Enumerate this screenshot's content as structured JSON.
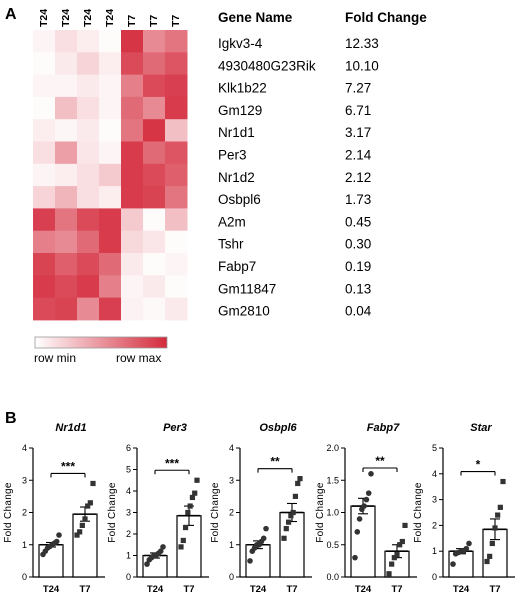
{
  "panel_a": {
    "letter": "A",
    "column_labels": [
      "T24",
      "T24",
      "T24",
      "T24",
      "T7",
      "T7",
      "T7"
    ],
    "table_header": {
      "gene": "Gene Name",
      "fold": "Fold Change"
    },
    "genes": [
      "Igkv3-4",
      "4930480G23Rik",
      "Klk1b22",
      "Gm129",
      "Nr1d1",
      "Per3",
      "Nr1d2",
      "Osbpl6",
      "A2m",
      "Tshr",
      "Fabp7",
      "Gm11847",
      "Gm2810"
    ],
    "fold_changes": [
      "12.33",
      "10.10",
      "7.27",
      "6.71",
      "3.17",
      "2.14",
      "2.12",
      "1.73",
      "0.45",
      "0.30",
      "0.19",
      "0.13",
      "0.04"
    ],
    "scale": {
      "min_label": "row min",
      "max_label": "row max",
      "min_color": "#ffffff",
      "max_color": "#d42a3c"
    },
    "heatmap": [
      [
        0.05,
        0.15,
        0.08,
        0.02,
        0.95,
        0.55,
        0.65
      ],
      [
        0.02,
        0.1,
        0.2,
        0.08,
        0.85,
        0.7,
        0.8
      ],
      [
        0.05,
        0.05,
        0.1,
        0.05,
        0.6,
        0.85,
        0.9
      ],
      [
        0.02,
        0.3,
        0.15,
        0.05,
        0.7,
        0.55,
        0.92
      ],
      [
        0.08,
        0.04,
        0.1,
        0.02,
        0.65,
        0.95,
        0.3
      ],
      [
        0.15,
        0.45,
        0.12,
        0.05,
        0.92,
        0.7,
        0.8
      ],
      [
        0.05,
        0.08,
        0.15,
        0.25,
        0.92,
        0.85,
        0.75
      ],
      [
        0.2,
        0.35,
        0.15,
        0.08,
        0.92,
        0.88,
        0.65
      ],
      [
        0.9,
        0.65,
        0.85,
        0.92,
        0.25,
        0.02,
        0.3
      ],
      [
        0.6,
        0.55,
        0.7,
        0.92,
        0.18,
        0.12,
        0.02
      ],
      [
        0.88,
        0.75,
        0.85,
        0.7,
        0.1,
        0.02,
        0.05
      ],
      [
        0.92,
        0.85,
        0.92,
        0.6,
        0.05,
        0.1,
        0.02
      ],
      [
        0.85,
        0.88,
        0.55,
        0.9,
        0.06,
        0.03,
        0.1
      ]
    ]
  },
  "panel_b": {
    "letter": "B"
  },
  "chart_data": [
    {
      "type": "bar",
      "title": "Nr1d1",
      "ylabel": "Fold Change",
      "categories": [
        "T24",
        "T7"
      ],
      "ylim": [
        0,
        4
      ],
      "yticks": [
        "0",
        "1",
        "2",
        "3",
        "4"
      ],
      "values": [
        1.0,
        1.95
      ],
      "errors": [
        0.07,
        0.22
      ],
      "points": [
        [
          0.7,
          0.8,
          0.9,
          0.95,
          1.0,
          1.05,
          1.1,
          1.3
        ],
        [
          1.3,
          1.4,
          1.6,
          1.8,
          2.2,
          2.3,
          2.9
        ]
      ],
      "significance": "***",
      "color": "#333333"
    },
    {
      "type": "bar",
      "title": "Per3",
      "ylabel": "Fold Change",
      "categories": [
        "T24",
        "T7"
      ],
      "ylim": [
        0,
        6
      ],
      "yticks": [
        "0",
        "1",
        "2",
        "3",
        "4",
        "5",
        "6"
      ],
      "values": [
        1.0,
        2.85
      ],
      "errors": [
        0.12,
        0.45
      ],
      "points": [
        [
          0.6,
          0.8,
          0.9,
          1.0,
          1.0,
          1.1,
          1.2,
          1.4
        ],
        [
          1.4,
          1.7,
          2.3,
          3.0,
          3.3,
          3.7,
          3.9,
          4.5
        ]
      ],
      "significance": "***",
      "color": "#333333"
    },
    {
      "type": "bar",
      "title": "Osbpl6",
      "ylabel": "Fold Change",
      "categories": [
        "T24",
        "T7"
      ],
      "ylim": [
        0,
        4
      ],
      "yticks": [
        "0",
        "1",
        "2",
        "3",
        "4"
      ],
      "values": [
        1.0,
        2.0
      ],
      "errors": [
        0.12,
        0.28
      ],
      "points": [
        [
          0.5,
          0.8,
          0.9,
          1.0,
          1.0,
          1.1,
          1.2,
          1.5
        ],
        [
          1.2,
          1.5,
          1.7,
          1.9,
          2.0,
          2.5,
          2.9,
          3.05
        ]
      ],
      "significance": "**",
      "color": "#333333"
    },
    {
      "type": "bar",
      "title": "Fabp7",
      "ylabel": "Fold Change",
      "categories": [
        "T24",
        "T7"
      ],
      "ylim": [
        0,
        2.0
      ],
      "yticks": [
        "0.0",
        "0.5",
        "1.0",
        "1.5",
        "2.0"
      ],
      "values": [
        1.1,
        0.4
      ],
      "errors": [
        0.12,
        0.1
      ],
      "points": [
        [
          0.3,
          0.7,
          0.9,
          1.05,
          1.1,
          1.2,
          1.3,
          1.6
        ],
        [
          0.05,
          0.2,
          0.3,
          0.35,
          0.5,
          0.55,
          0.8
        ]
      ],
      "significance": "**",
      "color": "#333333"
    },
    {
      "type": "bar",
      "title": "Star",
      "ylabel": "Fold Change",
      "categories": [
        "T24",
        "T7"
      ],
      "ylim": [
        0,
        5
      ],
      "yticks": [
        "0",
        "1",
        "2",
        "3",
        "4",
        "5"
      ],
      "values": [
        1.0,
        1.85
      ],
      "errors": [
        0.1,
        0.4
      ],
      "points": [
        [
          0.5,
          0.9,
          0.95,
          1.0,
          1.0,
          1.1,
          1.3
        ],
        [
          0.6,
          0.8,
          1.3,
          1.9,
          2.4,
          2.7,
          3.7
        ]
      ],
      "significance": "*",
      "color": "#333333"
    }
  ]
}
